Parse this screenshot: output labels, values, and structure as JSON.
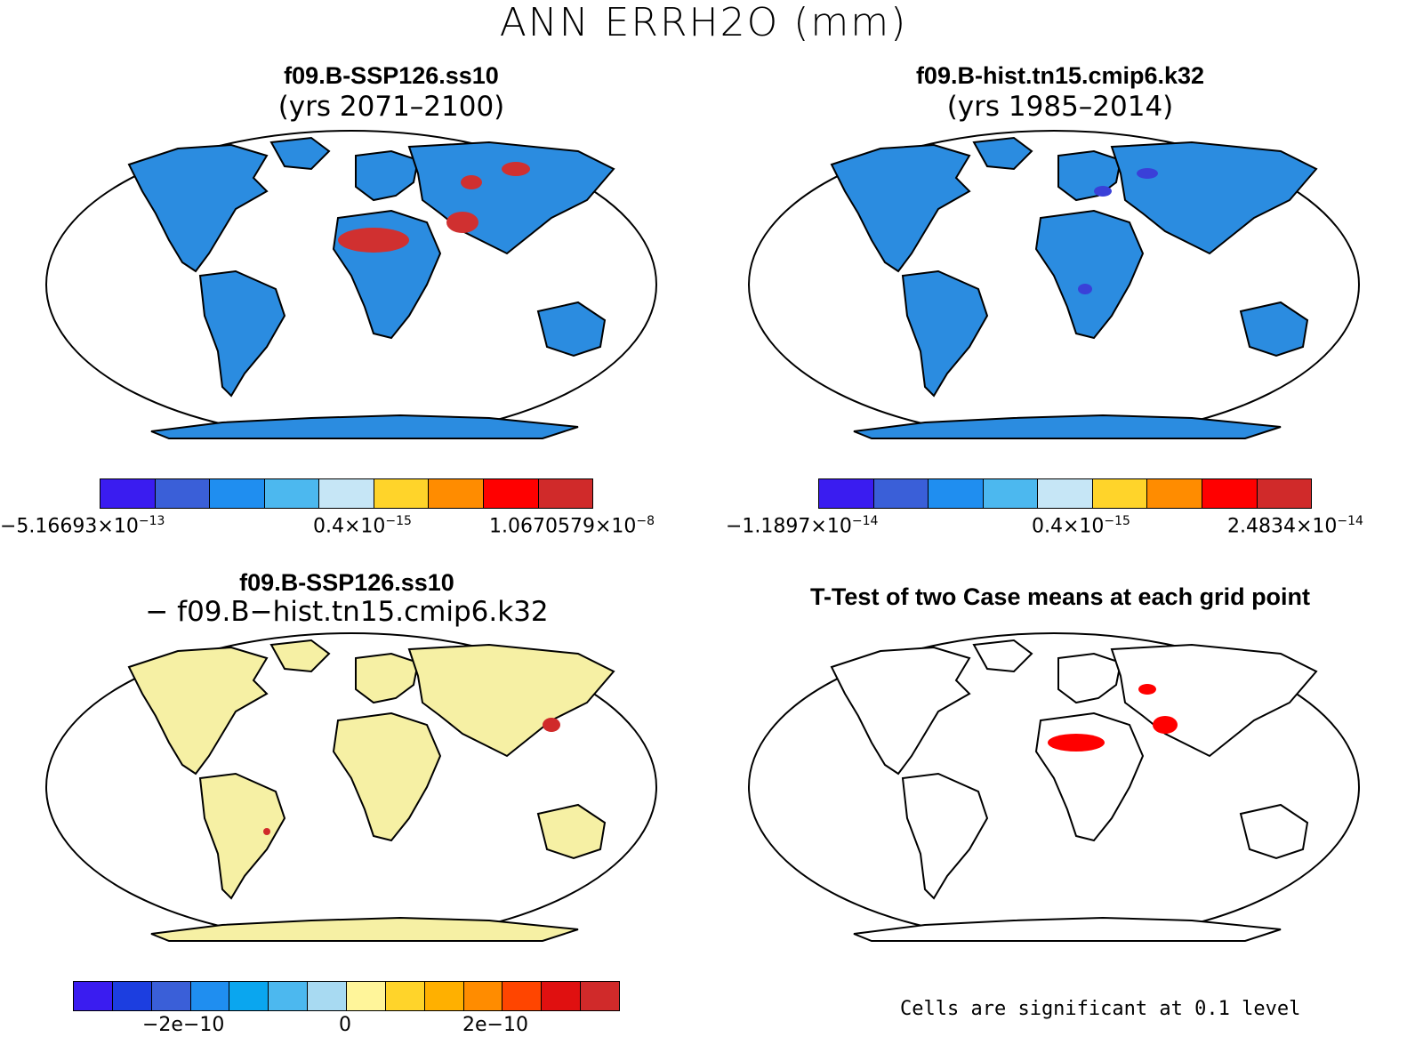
{
  "title": "ANN ERRH2O (mm)",
  "panels": [
    {
      "id": "case1",
      "title": "f09.B-SSP126.ss10",
      "subtitle": "(yrs 2071–2100)",
      "land_color": "#2b8ce0",
      "hotspot_color": "#d03030",
      "colorbar": {
        "colors": [
          "#3a1cf0",
          "#3a5fd8",
          "#1f8ef0",
          "#4cb8ef",
          "#c6e6f6",
          "#ffd42a",
          "#ff8c00",
          "#ff0000",
          "#d02a2a"
        ],
        "ticks": [
          {
            "mant": "−5.16693×10",
            "exp": "−13"
          },
          {
            "mant": "0.4×10",
            "exp": "−15"
          },
          {
            "mant": "1.0670579×10",
            "exp": "−8"
          }
        ]
      }
    },
    {
      "id": "case2",
      "title": "f09.B-hist.tn15.cmip6.k32",
      "subtitle": "(yrs 1985–2014)",
      "land_color": "#2b8ce0",
      "hotspot_color": "#3a40d8",
      "colorbar": {
        "colors": [
          "#3a1cf0",
          "#3a5fd8",
          "#1f8ef0",
          "#4cb8ef",
          "#c6e6f6",
          "#ffd42a",
          "#ff8c00",
          "#ff0000",
          "#d02a2a"
        ],
        "ticks": [
          {
            "mant": "−1.1897×10",
            "exp": "−14"
          },
          {
            "mant": "0.4×10",
            "exp": "−15"
          },
          {
            "mant": "2.4834×10",
            "exp": "−14"
          }
        ]
      }
    },
    {
      "id": "diff",
      "title": "f09.B-SSP126.ss10",
      "subtitle": "− f09.B−hist.tn15.cmip6.k32",
      "land_color": "#f6f0a4",
      "hotspot_color": "#d02a2a",
      "colorbar": {
        "colors": [
          "#3a1cf0",
          "#1c3ee0",
          "#3a5fd8",
          "#1f8ef0",
          "#0aa6ef",
          "#4cb8ef",
          "#a8daf2",
          "#fff59a",
          "#ffd42a",
          "#ffb000",
          "#ff8c00",
          "#ff4500",
          "#e01010",
          "#d02a2a"
        ],
        "ticks": [
          {
            "mant": "−2e−10",
            "exp": ""
          },
          {
            "mant": "0",
            "exp": ""
          },
          {
            "mant": "2e−10",
            "exp": ""
          }
        ]
      }
    },
    {
      "id": "ttest",
      "title": "T-Test of two Case means at each grid point",
      "subtitle": "",
      "land_color": "#ffffff",
      "hotspot_color": "#ff0000",
      "note": "Cells are significant at 0.1 level"
    }
  ]
}
